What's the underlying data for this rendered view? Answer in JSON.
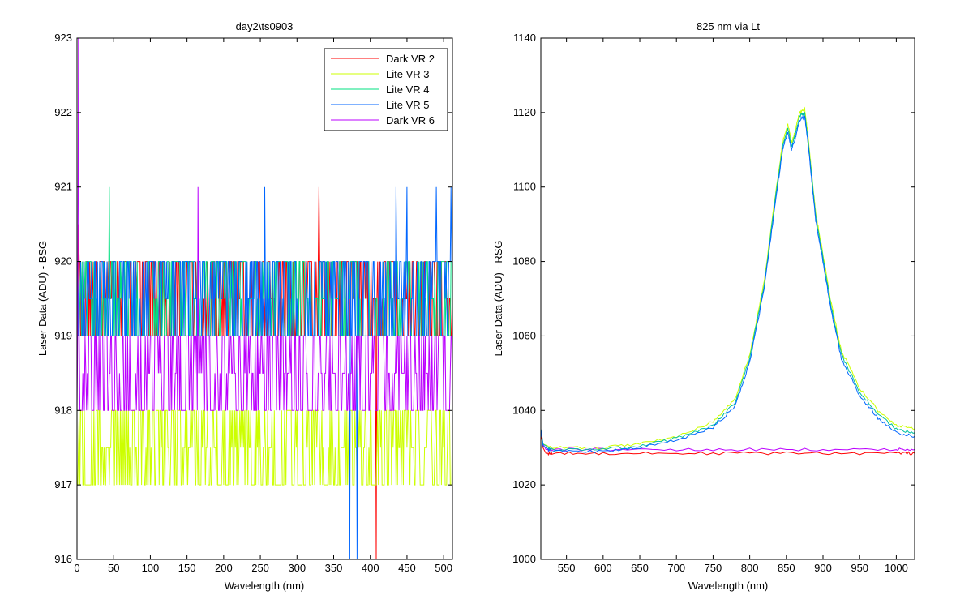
{
  "chart_data": [
    {
      "type": "line",
      "title": "day2\\ts0903",
      "xlabel": "Wavelength (nm)",
      "ylabel": "Laser Data (ADU) - BSG",
      "xlim": [
        0,
        512
      ],
      "ylim": [
        916,
        923
      ],
      "xticks": [
        0,
        50,
        100,
        150,
        200,
        250,
        300,
        350,
        400,
        450,
        500
      ],
      "yticks": [
        916,
        917,
        918,
        919,
        920,
        921,
        922,
        923
      ],
      "legend_position": "top-right",
      "series": [
        {
          "name": "Dark VR 2",
          "color": "#ff0000",
          "band": [
            919,
            920
          ],
          "spikes": [
            [
              2,
              920.5
            ],
            [
              330,
              921
            ],
            [
              408,
              916
            ]
          ]
        },
        {
          "name": "Lite VR 3",
          "color": "#ccff00",
          "band": [
            917,
            918
          ],
          "spikes": [
            [
              165,
              917
            ]
          ]
        },
        {
          "name": "Lite VR 4",
          "color": "#00e080",
          "band": [
            919,
            920
          ],
          "spikes": [
            [
              44,
              921
            ]
          ]
        },
        {
          "name": "Lite VR 5",
          "color": "#0066ff",
          "band": [
            919,
            920
          ],
          "spikes": [
            [
              256,
              921
            ],
            [
              372,
              916
            ],
            [
              382,
              916
            ],
            [
              435,
              921
            ],
            [
              450,
              921
            ],
            [
              490,
              921
            ],
            [
              510,
              921
            ]
          ]
        },
        {
          "name": "Dark VR 6",
          "color": "#bb00ff",
          "band": [
            918,
            919
          ],
          "spikes": [
            [
              2,
              923
            ],
            [
              165,
              921
            ]
          ]
        }
      ]
    },
    {
      "type": "line",
      "title": "825 nm via Lt",
      "xlabel": "Wavelength (nm)",
      "ylabel": "Laser Data (ADU) - RSG",
      "xlim": [
        515,
        1025
      ],
      "ylim": [
        1000,
        1140
      ],
      "xticks": [
        550,
        600,
        650,
        700,
        750,
        800,
        850,
        900,
        950,
        1000
      ],
      "yticks": [
        1000,
        1020,
        1040,
        1060,
        1080,
        1100,
        1120,
        1140
      ],
      "series": [
        {
          "color": "#ff0000",
          "x": [
            515,
            518,
            522,
            530,
            600,
            700,
            800,
            900,
            1000,
            1025
          ],
          "y": [
            1034,
            1030,
            1028.5,
            1028.5,
            1028.5,
            1028.5,
            1028.5,
            1028.5,
            1028.5,
            1028.5
          ]
        },
        {
          "color": "#bb00ff",
          "x": [
            515,
            518,
            522,
            530,
            600,
            700,
            800,
            900,
            1000,
            1025
          ],
          "y": [
            1035,
            1031,
            1029.5,
            1029.5,
            1029.5,
            1029.5,
            1029.5,
            1029.5,
            1029.5,
            1029.5
          ]
        },
        {
          "color": "#ccff00",
          "x": [
            515,
            518,
            530,
            600,
            650,
            700,
            750,
            780,
            800,
            820,
            835,
            845,
            852,
            857,
            862,
            868,
            875,
            880,
            885,
            890,
            900,
            910,
            925,
            950,
            975,
            1000,
            1025
          ],
          "y": [
            1035,
            1031,
            1030,
            1030,
            1031,
            1033,
            1037,
            1043,
            1055,
            1075,
            1098,
            1112,
            1117,
            1112,
            1115,
            1120,
            1121,
            1113,
            1103,
            1093,
            1082,
            1070,
            1056,
            1046,
            1040,
            1036,
            1035
          ]
        },
        {
          "color": "#00c0a0",
          "x": [
            515,
            518,
            530,
            600,
            650,
            700,
            750,
            780,
            800,
            820,
            835,
            845,
            852,
            857,
            862,
            868,
            875,
            880,
            885,
            890,
            900,
            910,
            925,
            950,
            975,
            1000,
            1025
          ],
          "y": [
            1035,
            1031,
            1029.5,
            1029.5,
            1030.5,
            1032.5,
            1036,
            1042,
            1054,
            1074,
            1097,
            1111,
            1116,
            1111,
            1114,
            1119,
            1120,
            1112,
            1102,
            1092,
            1081,
            1069,
            1055,
            1045,
            1039,
            1035,
            1034
          ]
        },
        {
          "color": "#0066ff",
          "x": [
            515,
            518,
            530,
            600,
            650,
            700,
            750,
            780,
            800,
            820,
            835,
            845,
            852,
            857,
            862,
            868,
            875,
            880,
            885,
            890,
            900,
            910,
            925,
            950,
            975,
            1000,
            1025
          ],
          "y": [
            1035,
            1030.5,
            1029,
            1029,
            1030,
            1032,
            1035.5,
            1041,
            1053,
            1073,
            1096,
            1110,
            1115,
            1110,
            1113,
            1118,
            1119,
            1111,
            1101,
            1091,
            1080,
            1068,
            1054,
            1044,
            1038,
            1034,
            1033
          ]
        }
      ]
    }
  ]
}
